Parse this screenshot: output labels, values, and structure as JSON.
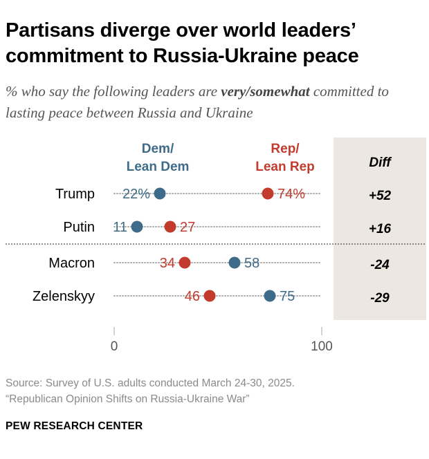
{
  "header": {
    "title": "Partisans diverge over world leaders’ commitment to Russia-Ukraine peace",
    "subtitle_pre": "% who say the following leaders are ",
    "subtitle_emph": "very/somewhat",
    "subtitle_post": " committed to lasting peace between Russia and Ukraine"
  },
  "footer": {
    "source": "Source: Survey of U.S. adults conducted March 24-30, 2025.",
    "report": "“Republican Opinion Shifts on Russia-Ukraine War”",
    "org": "PEW RESEARCH CENTER"
  },
  "colors": {
    "dem": "#3e6b89",
    "rep": "#c33b2c",
    "diff_bg": "#ece8e1",
    "dots": "#a9a9a9",
    "axis": "#c6c6c6"
  },
  "chart_data": {
    "type": "dot",
    "legend": {
      "dem": [
        "Dem/",
        "Lean Dem"
      ],
      "rep": [
        "Rep/",
        "Lean Rep"
      ]
    },
    "diff_header": "Diff",
    "xlim": [
      0,
      100
    ],
    "ticks": [
      0,
      100
    ],
    "tick_labels": [
      "0",
      "100"
    ],
    "rows": [
      {
        "label": "Trump",
        "dem": 22,
        "rep": 74,
        "dem_label": "22%",
        "rep_label": "74%",
        "diff": "+52"
      },
      {
        "label": "Putin",
        "dem": 11,
        "rep": 27,
        "dem_label": "11",
        "rep_label": "27",
        "diff": "+16"
      },
      {
        "label": "Macron",
        "dem": 58,
        "rep": 34,
        "dem_label": "58",
        "rep_label": "34",
        "diff": "-24"
      },
      {
        "label": "Zelenskyy",
        "dem": 75,
        "rep": 46,
        "dem_label": "75",
        "rep_label": "46",
        "diff": "-29"
      }
    ]
  }
}
